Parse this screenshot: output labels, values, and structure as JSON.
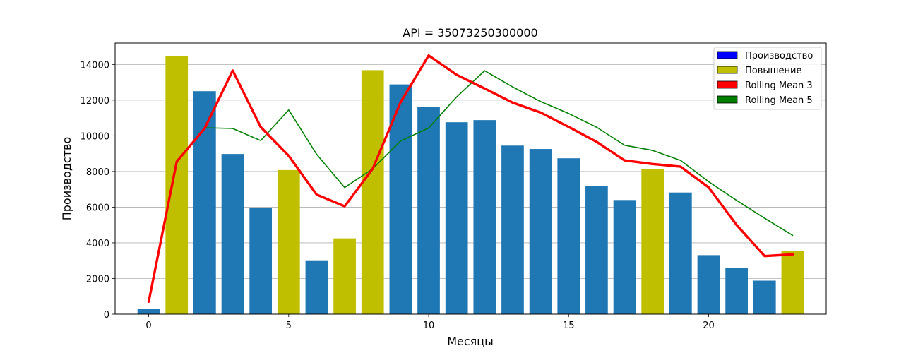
{
  "chart_data": {
    "type": "bar",
    "title": "API = 35073250300000",
    "xlabel": "Месяцы",
    "ylabel": "Производство",
    "xlim": [
      -1.2,
      24.2
    ],
    "ylim": [
      0,
      15200
    ],
    "x_ticks": [
      0,
      5,
      10,
      15,
      20
    ],
    "y_ticks": [
      0,
      2000,
      4000,
      6000,
      8000,
      10000,
      12000,
      14000
    ],
    "grid": "y",
    "legend_position": "top-right",
    "x": [
      0,
      1,
      2,
      3,
      4,
      5,
      6,
      7,
      8,
      9,
      10,
      11,
      12,
      13,
      14,
      15,
      16,
      17,
      18,
      19,
      20,
      21,
      22,
      23
    ],
    "bars": {
      "values": [
        300,
        14450,
        12500,
        8980,
        5960,
        8080,
        3020,
        4250,
        13680,
        12880,
        11620,
        10760,
        10880,
        9450,
        9260,
        8740,
        7170,
        6400,
        8120,
        6820,
        3310,
        2600,
        1880,
        3550
      ],
      "increase": [
        false,
        true,
        false,
        false,
        false,
        true,
        false,
        true,
        true,
        false,
        false,
        false,
        false,
        false,
        false,
        false,
        false,
        false,
        true,
        false,
        false,
        false,
        false,
        true
      ],
      "color_base": "#1f77b4",
      "color_increase": "#bfbf00"
    },
    "series": [
      {
        "name": "Rolling Mean 3",
        "color": "#ff0000",
        "values": [
          700,
          8550,
          10420,
          13660,
          10490,
          8880,
          6700,
          6050,
          8150,
          11890,
          14500,
          13420,
          12650,
          11860,
          11300,
          10500,
          9660,
          8620,
          8420,
          8270,
          7110,
          5000,
          3260,
          3350
        ]
      },
      {
        "name": "Rolling Mean 5",
        "color": "#008000",
        "values": [
          700,
          8550,
          10450,
          10410,
          9730,
          11450,
          8960,
          7100,
          8150,
          9710,
          10440,
          12180,
          13650,
          12740,
          11920,
          11250,
          10480,
          9470,
          9180,
          8620,
          7430,
          6380,
          5380,
          4420
        ]
      }
    ],
    "legend": [
      {
        "label": "Производство",
        "color": "#0000ff"
      },
      {
        "label": "Повышение",
        "color": "#bfbf00"
      },
      {
        "label": "Rolling Mean 3",
        "color": "#ff0000"
      },
      {
        "label": "Rolling Mean 5",
        "color": "#008000"
      }
    ]
  }
}
